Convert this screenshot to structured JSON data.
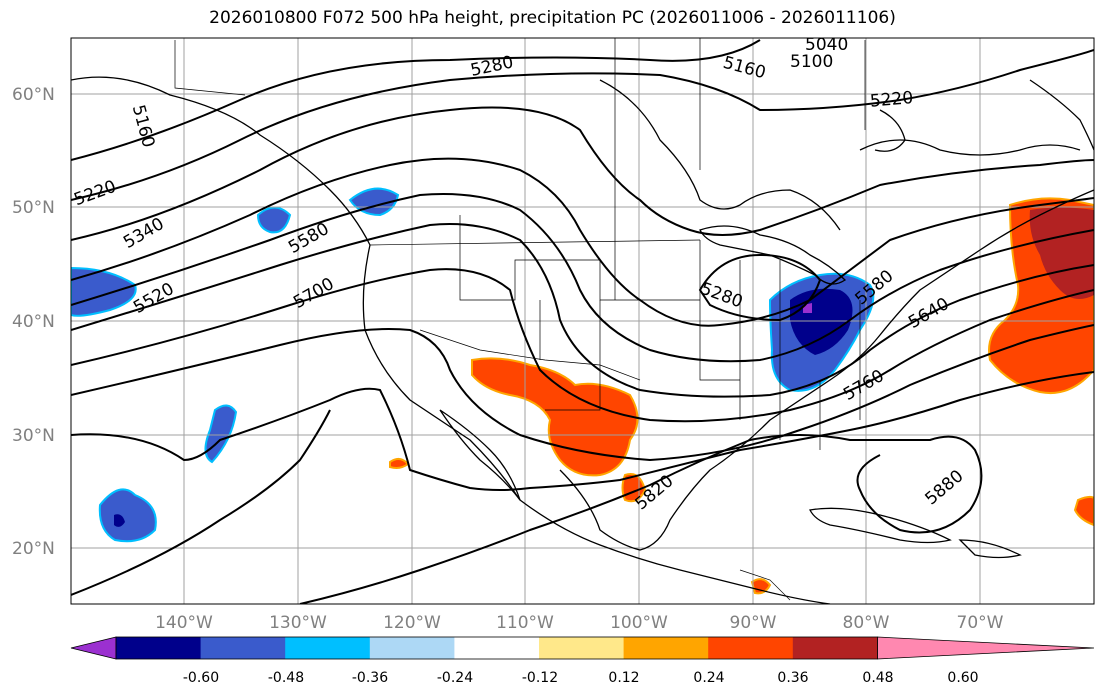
{
  "title": "2026010800 F072 500 hPa height, precipitation PC (2026011006 - 2026011106)",
  "latitude_labels": [
    "60°N",
    "50°N",
    "40°N",
    "30°N",
    "20°N"
  ],
  "longitude_labels": [
    "140°W",
    "130°W",
    "120°W",
    "110°W",
    "100°W",
    "90°W",
    "80°W",
    "70°W"
  ],
  "contour_labels": [
    "5160",
    "5220",
    "5340",
    "5520",
    "5580",
    "5700",
    "5280",
    "5040",
    "5100",
    "5160",
    "5220",
    "5280",
    "5580",
    "5640",
    "5760",
    "5820",
    "5880"
  ],
  "colorbar": {
    "ticks": [
      "-0.60",
      "-0.48",
      "-0.36",
      "-0.24",
      "-0.12",
      "0.12",
      "0.24",
      "0.36",
      "0.48",
      "0.60"
    ],
    "colors": [
      "#9b30d0",
      "#00008b",
      "#3a5bcc",
      "#00bfff",
      "#add8f5",
      "#ffffff",
      "#ffe88a",
      "#ffa500",
      "#ff4500",
      "#b22222",
      "#ff88b0"
    ]
  }
}
